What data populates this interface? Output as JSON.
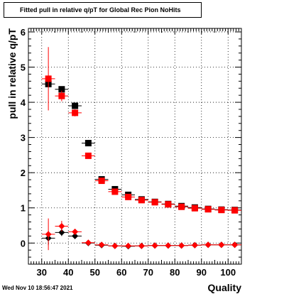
{
  "title": "Fitted pull in relative q/pT for Global Rec Pion NoHits",
  "timestamp": "Wed Nov 10 18:56:47 2021",
  "chart_data": {
    "type": "scatter",
    "title": "Fitted pull in relative q/pT for Global Rec Pion NoHits",
    "xlabel": "Quality",
    "ylabel": "pull in relative q/pT",
    "xlim": [
      25,
      105
    ],
    "ylim": [
      -0.6,
      6.1
    ],
    "grid": true,
    "legend": "none",
    "x_ticks": [
      30,
      40,
      50,
      60,
      70,
      80,
      90,
      100
    ],
    "y_ticks": [
      0,
      1,
      2,
      3,
      4,
      5,
      6
    ],
    "series": [
      {
        "marker": "square",
        "color": "#000000",
        "role": "upper",
        "points": [
          {
            "x": 32.5,
            "y": 4.52,
            "yerr": 0.08
          },
          {
            "x": 37.5,
            "y": 4.37,
            "yerr": 0.06
          },
          {
            "x": 42.5,
            "y": 3.9,
            "yerr": 0.05
          },
          {
            "x": 47.5,
            "y": 2.84,
            "yerr": 0.04
          },
          {
            "x": 52.5,
            "y": 1.81,
            "yerr": 0.03
          },
          {
            "x": 57.5,
            "y": 1.53,
            "yerr": 0.03
          },
          {
            "x": 62.5,
            "y": 1.37,
            "yerr": 0.03
          },
          {
            "x": 67.5,
            "y": 1.24,
            "yerr": 0.03
          },
          {
            "x": 72.5,
            "y": 1.17,
            "yerr": 0.03
          },
          {
            "x": 77.5,
            "y": 1.11,
            "yerr": 0.03
          },
          {
            "x": 82.5,
            "y": 1.05,
            "yerr": 0.03
          },
          {
            "x": 87.5,
            "y": 1.01,
            "yerr": 0.03
          },
          {
            "x": 92.5,
            "y": 0.97,
            "yerr": 0.03
          },
          {
            "x": 97.5,
            "y": 0.95,
            "yerr": 0.03
          },
          {
            "x": 102.5,
            "y": 0.94,
            "yerr": 0.03
          }
        ]
      },
      {
        "marker": "square",
        "color": "#ff0000",
        "role": "upper",
        "points": [
          {
            "x": 32.5,
            "y": 4.67,
            "yerr": 0.9
          },
          {
            "x": 37.5,
            "y": 4.18,
            "yerr": 0.15
          },
          {
            "x": 42.5,
            "y": 3.7,
            "yerr": 0.1
          },
          {
            "x": 47.5,
            "y": 2.48,
            "yerr": 0.05
          },
          {
            "x": 52.5,
            "y": 1.77,
            "yerr": 0.04
          },
          {
            "x": 57.5,
            "y": 1.46,
            "yerr": 0.04
          },
          {
            "x": 62.5,
            "y": 1.31,
            "yerr": 0.04
          },
          {
            "x": 67.5,
            "y": 1.22,
            "yerr": 0.03
          },
          {
            "x": 72.5,
            "y": 1.16,
            "yerr": 0.03
          },
          {
            "x": 77.5,
            "y": 1.1,
            "yerr": 0.03
          },
          {
            "x": 82.5,
            "y": 1.03,
            "yerr": 0.03
          },
          {
            "x": 87.5,
            "y": 0.99,
            "yerr": 0.03
          },
          {
            "x": 92.5,
            "y": 0.96,
            "yerr": 0.03
          },
          {
            "x": 97.5,
            "y": 0.94,
            "yerr": 0.03
          },
          {
            "x": 102.5,
            "y": 0.93,
            "yerr": 0.03
          }
        ]
      },
      {
        "marker": "diamond",
        "color": "#000000",
        "role": "lower",
        "points": [
          {
            "x": 32.5,
            "y": 0.14,
            "yerr": 0.2
          },
          {
            "x": 37.5,
            "y": 0.3,
            "yerr": 0.1
          },
          {
            "x": 42.5,
            "y": 0.2,
            "yerr": 0.06
          },
          {
            "x": 47.5,
            "y": 0.0,
            "yerr": 0.02
          },
          {
            "x": 52.5,
            "y": -0.06,
            "yerr": 0.02
          },
          {
            "x": 57.5,
            "y": -0.08,
            "yerr": 0.02
          },
          {
            "x": 62.5,
            "y": -0.09,
            "yerr": 0.02
          },
          {
            "x": 67.5,
            "y": -0.08,
            "yerr": 0.02
          },
          {
            "x": 72.5,
            "y": -0.07,
            "yerr": 0.02
          },
          {
            "x": 77.5,
            "y": -0.07,
            "yerr": 0.02
          },
          {
            "x": 82.5,
            "y": -0.07,
            "yerr": 0.02
          },
          {
            "x": 87.5,
            "y": -0.06,
            "yerr": 0.02
          },
          {
            "x": 92.5,
            "y": -0.05,
            "yerr": 0.02
          },
          {
            "x": 97.5,
            "y": -0.05,
            "yerr": 0.02
          },
          {
            "x": 102.5,
            "y": -0.05,
            "yerr": 0.02
          }
        ]
      },
      {
        "marker": "diamond",
        "color": "#ff0000",
        "role": "lower",
        "points": [
          {
            "x": 32.5,
            "y": 0.25,
            "yerr": 0.45
          },
          {
            "x": 37.5,
            "y": 0.48,
            "yerr": 0.15
          },
          {
            "x": 42.5,
            "y": 0.32,
            "yerr": 0.08
          },
          {
            "x": 47.5,
            "y": 0.01,
            "yerr": 0.03
          },
          {
            "x": 52.5,
            "y": -0.05,
            "yerr": 0.03
          },
          {
            "x": 57.5,
            "y": -0.08,
            "yerr": 0.03
          },
          {
            "x": 62.5,
            "y": -0.08,
            "yerr": 0.03
          },
          {
            "x": 67.5,
            "y": -0.08,
            "yerr": 0.03
          },
          {
            "x": 72.5,
            "y": -0.07,
            "yerr": 0.03
          },
          {
            "x": 77.5,
            "y": -0.07,
            "yerr": 0.03
          },
          {
            "x": 82.5,
            "y": -0.07,
            "yerr": 0.03
          },
          {
            "x": 87.5,
            "y": -0.06,
            "yerr": 0.03
          },
          {
            "x": 92.5,
            "y": -0.05,
            "yerr": 0.03
          },
          {
            "x": 97.5,
            "y": -0.05,
            "yerr": 0.03
          },
          {
            "x": 102.5,
            "y": -0.05,
            "yerr": 0.03
          }
        ]
      }
    ]
  }
}
